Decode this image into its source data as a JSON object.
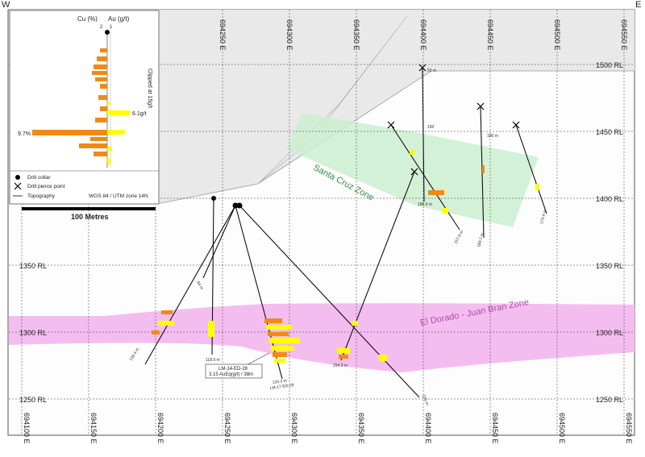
{
  "section": {
    "corner_west": "W",
    "corner_east": "E",
    "elevation_labels": [
      "1500 RL",
      "1450 RL",
      "1400 RL",
      "1350 RL",
      "1300 RL",
      "1250 RL"
    ],
    "easting_labels": [
      "694100 E",
      "694150 E",
      "694200 E",
      "694250 E",
      "694300 E",
      "694350 E",
      "694400 E",
      "694450 E",
      "694500 E",
      "694550 E"
    ],
    "zones": {
      "santa_cruz": "Santa Cruz Zone",
      "el_dorado": "El Dorado - Juan Bran Zone"
    },
    "colors": {
      "santa_cruz": "#cbeed0",
      "el_dorado": "#f4bdf0",
      "cu_bar": "#f08a12",
      "au_bar": "#ffff00",
      "topography": "#e9e9ea"
    }
  },
  "legend": {
    "cu_label": "Cu (%)",
    "au_label": "Au (g/t)",
    "scale_cu": "2",
    "scale_au": "1",
    "clip_note": "Clipped at 15g/t",
    "callout_au": "6.1g/t",
    "callout_cu": "9.7%",
    "collar": "Drill collar",
    "pierce": "Drill pierce point",
    "topography": "Topography",
    "projection": "WGS 84 / UTM zone 14N",
    "scale_bar": "100 Metres"
  },
  "holes": {
    "labels": [
      "136.4 m",
      "84 m",
      "118.9 m",
      "133.3 m",
      "294.9 m",
      "103 m",
      "50 m",
      "100",
      "186.6 m",
      "157.9 m",
      "180 m",
      "189.2 m",
      "170.4 m"
    ],
    "callout_title": "LM-14-ED-28",
    "callout_value": "3.15 AuEq(g/t) / 38m",
    "hole_id_2": "LM-17-ED-28"
  }
}
